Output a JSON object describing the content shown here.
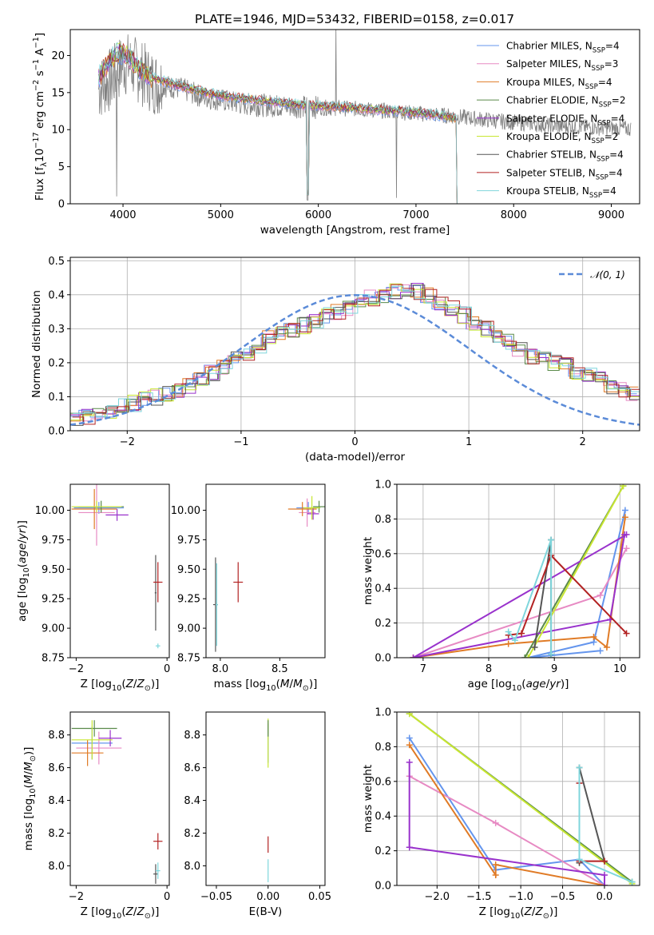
{
  "title": "PLATE=1946, MJD=53432, FIBERID=0158, z=0.017",
  "series_styles": [
    {
      "key": "CM",
      "name": "Chabrier MILES, N<sub>SSP</sub>=4",
      "color": "#6495ed"
    },
    {
      "key": "SM",
      "name": "Salpeter MILES, N<sub>SSP</sub>=3",
      "color": "#e78ac3"
    },
    {
      "key": "KM",
      "name": "Kroupa MILES, N<sub>SSP</sub>=4",
      "color": "#e07b26"
    },
    {
      "key": "CE",
      "name": "Chabrier ELODIE, N<sub>SSP</sub>=2",
      "color": "#5a8a4a"
    },
    {
      "key": "SE",
      "name": "Salpeter ELODIE, N<sub>SSP</sub>=4",
      "color": "#9932cc"
    },
    {
      "key": "KE",
      "name": "Kroupa ELODIE, N<sub>SSP</sub>=2",
      "color": "#c8e632"
    },
    {
      "key": "CS",
      "name": "Chabrier STELIB, N<sub>SSP</sub>=4",
      "color": "#555555"
    },
    {
      "key": "SS",
      "name": "Salpeter STELIB, N<sub>SSP</sub>=4",
      "color": "#b22222"
    },
    {
      "key": "KS",
      "name": "Kroupa STELIB, N<sub>SSP</sub>=4",
      "color": "#7fd6dc"
    }
  ],
  "chart_data": [
    {
      "id": "spectrum",
      "type": "line",
      "xlabel": "wavelength [Angstrom, rest frame]",
      "ylabel": "Flux [f<sub>λ</sub>10<sup>−17</sup> erg cm<sup>−2</sup> s<sup>−1</sup> A<sup>−1</sup>]",
      "xlim": [
        3460,
        9290
      ],
      "ylim": [
        0,
        23.5
      ],
      "xticks": [
        4000,
        5000,
        6000,
        7000,
        8000,
        9000
      ],
      "yticks": [
        0,
        5,
        10,
        15,
        20
      ],
      "grid": false,
      "legend": "upper right",
      "data_color": "#808080",
      "data_envelope": {
        "x": [
          3750,
          3900,
          4000,
          4100,
          4200,
          4300,
          4400,
          4600,
          4800,
          5000,
          5200,
          5400,
          5600,
          5800,
          6000,
          6200,
          6400,
          6600,
          6800,
          7000,
          7200,
          7400,
          7600,
          7800,
          8000,
          8200,
          8400,
          8600,
          8800,
          9000,
          9200
        ],
        "y": [
          15.5,
          17,
          19,
          18.5,
          17.5,
          16.5,
          16,
          15.5,
          14.5,
          14,
          13.5,
          13.3,
          13.2,
          13.1,
          13,
          12.9,
          12.8,
          12.6,
          12.4,
          12.2,
          12,
          11.8,
          11.5,
          11.2,
          11,
          10.8,
          10.5,
          10.4,
          10.3,
          10.2,
          10.1
        ]
      },
      "model_envelope": {
        "x": [
          3750,
          3850,
          3950,
          4050,
          4150,
          4300,
          4500,
          4700,
          5000,
          5300,
          5600,
          6000,
          6300,
          6600,
          7000,
          7300,
          7420
        ],
        "y": [
          17,
          19,
          20.5,
          20,
          18.5,
          17,
          16.2,
          15.5,
          14.6,
          14.1,
          13.6,
          13.2,
          13,
          12.7,
          12.3,
          11.8,
          11.5
        ]
      }
    },
    {
      "id": "residuals",
      "type": "histogram",
      "xlabel": "(data-model)/error",
      "ylabel": "Normed distribution",
      "xlim": [
        -2.5,
        2.5
      ],
      "ylim": [
        0,
        0.51
      ],
      "xticks": [
        -2,
        -1,
        0,
        1,
        2
      ],
      "yticks": [
        0.0,
        0.1,
        0.2,
        0.3,
        0.4,
        0.5
      ],
      "grid": true,
      "legend": "upper right",
      "reference_label": "𝒩(0, 1)",
      "reference_color": "#5b8bd8",
      "bin_edges_start": -2.5,
      "bin_width": 0.1,
      "hist": [
        0.035,
        0.04,
        0.05,
        0.06,
        0.07,
        0.08,
        0.09,
        0.1,
        0.11,
        0.12,
        0.13,
        0.15,
        0.17,
        0.19,
        0.21,
        0.23,
        0.25,
        0.27,
        0.29,
        0.3,
        0.31,
        0.32,
        0.34,
        0.35,
        0.36,
        0.38,
        0.39,
        0.4,
        0.41,
        0.42,
        0.41,
        0.4,
        0.38,
        0.36,
        0.34,
        0.32,
        0.3,
        0.28,
        0.26,
        0.24,
        0.22,
        0.21,
        0.2,
        0.19,
        0.17,
        0.16,
        0.15,
        0.13,
        0.12,
        0.11
      ]
    },
    {
      "id": "age_vs_Z",
      "type": "errorbar",
      "xlabel": "Z [log<sub>10</sub>(<i>Z</i>/<i>Z</i><sub>⊙</sub>)]",
      "ylabel": "age  [log<sub>10</sub>(<i>age</i>/<i>yr</i>)]",
      "xlim": [
        -2.13,
        0.05
      ],
      "ylim": [
        8.75,
        10.22
      ],
      "xticks": [
        -2,
        0
      ],
      "yticks": [
        8.75,
        9.0,
        9.25,
        9.5,
        9.75,
        10.0
      ],
      "points": [
        {
          "s": "CM",
          "x": -1.5,
          "y": 10.02,
          "xe": 0.55,
          "ye": 0.05
        },
        {
          "s": "SM",
          "x": -1.55,
          "y": 9.98,
          "xe": 0.4,
          "ye": 0.28
        },
        {
          "s": "KM",
          "x": -1.6,
          "y": 10.01,
          "xe": 0.5,
          "ye": 0.17
        },
        {
          "s": "CE",
          "x": -1.45,
          "y": 10.03,
          "xe": 0.5,
          "ye": 0.05
        },
        {
          "s": "SE",
          "x": -1.1,
          "y": 9.96,
          "xe": 0.25,
          "ye": 0.05
        },
        {
          "s": "KE",
          "x": -1.55,
          "y": 10.03,
          "xe": 0.55,
          "ye": 0.05
        },
        {
          "s": "CS",
          "x": -0.25,
          "y": 9.3,
          "xe": 0.02,
          "ye": 0.32
        },
        {
          "s": "SS",
          "x": -0.2,
          "y": 9.39,
          "xe": 0.1,
          "ye": 0.17
        },
        {
          "s": "KS",
          "x": -0.2,
          "y": 8.85,
          "xe": 0.05,
          "ye": 0.02
        }
      ]
    },
    {
      "id": "age_vs_mass",
      "type": "errorbar",
      "xlabel": "mass [log<sub>10</sub>(<i>M</i>/<i>M</i><sub>⊙</sub>)]",
      "ylabel": "",
      "xlim": [
        7.88,
        8.88
      ],
      "ylim": [
        8.75,
        10.22
      ],
      "xticks": [
        8.0,
        8.5
      ],
      "yticks": [
        8.75,
        9.0,
        9.25,
        9.5,
        9.75,
        10.0
      ],
      "points": [
        {
          "s": "CM",
          "x": 8.74,
          "y": 10.02,
          "xe": 0.1,
          "ye": 0.05
        },
        {
          "s": "SM",
          "x": 8.73,
          "y": 9.98,
          "xe": 0.07,
          "ye": 0.12
        },
        {
          "s": "KM",
          "x": 8.69,
          "y": 10.01,
          "xe": 0.12,
          "ye": 0.06
        },
        {
          "s": "CE",
          "x": 8.83,
          "y": 10.03,
          "xe": 0.05,
          "ye": 0.05
        },
        {
          "s": "SE",
          "x": 8.78,
          "y": 9.97,
          "xe": 0.05,
          "ye": 0.05
        },
        {
          "s": "KE",
          "x": 8.77,
          "y": 10.02,
          "xe": 0.07,
          "ye": 0.1
        },
        {
          "s": "CS",
          "x": 7.96,
          "y": 9.2,
          "xe": 0.02,
          "ye": 0.4
        },
        {
          "s": "SS",
          "x": 8.15,
          "y": 9.39,
          "xe": 0.04,
          "ye": 0.17
        },
        {
          "s": "KS",
          "x": 7.97,
          "y": 9.2,
          "xe": 0.01,
          "ye": 0.35
        }
      ]
    },
    {
      "id": "weight_vs_age",
      "type": "line",
      "xlabel": "age  [log<sub>10</sub>(<i>age</i>/<i>yr</i>)]",
      "ylabel": "mass weight",
      "xlim": [
        6.6,
        10.3
      ],
      "ylim": [
        0,
        1
      ],
      "xticks": [
        7,
        8,
        9,
        10
      ],
      "yticks": [
        0.0,
        0.2,
        0.4,
        0.6,
        0.8,
        1.0
      ],
      "grid": true,
      "series": [
        {
          "s": "CM",
          "x": [
            10.08,
            9.6,
            8.6,
            9.7
          ],
          "y": [
            0.85,
            0.09,
            0.0,
            0.04
          ]
        },
        {
          "s": "SM",
          "x": [
            6.85,
            9.7,
            10.1
          ],
          "y": [
            0.0,
            0.36,
            0.63
          ]
        },
        {
          "s": "KM",
          "x": [
            10.08,
            9.8,
            9.6,
            8.3,
            6.85
          ],
          "y": [
            0.81,
            0.06,
            0.12,
            0.08,
            0.0
          ]
        },
        {
          "s": "CE",
          "x": [
            8.55,
            10.05
          ],
          "y": [
            0.0,
            0.99
          ]
        },
        {
          "s": "SE",
          "x": [
            10.07,
            9.85,
            6.85,
            10.1
          ],
          "y": [
            0.71,
            0.22,
            0.0,
            0.71
          ]
        },
        {
          "s": "KE",
          "x": [
            8.6,
            10.05
          ],
          "y": [
            0.0,
            0.99
          ]
        },
        {
          "s": "CS",
          "x": [
            8.95,
            8.95,
            8.7
          ],
          "y": [
            0.0,
            0.68,
            0.06
          ]
        },
        {
          "s": "SS",
          "x": [
            10.1,
            8.95,
            8.5,
            8.3
          ],
          "y": [
            0.14,
            0.59,
            0.14,
            0.13
          ]
        },
        {
          "s": "KS",
          "x": [
            8.95,
            8.95,
            8.4,
            8.3
          ],
          "y": [
            0.02,
            0.68,
            0.1,
            0.15
          ]
        }
      ]
    },
    {
      "id": "mass_vs_Z",
      "type": "errorbar",
      "xlabel": "Z [log<sub>10</sub>(<i>Z</i>/<i>Z</i><sub>⊙</sub>)]",
      "ylabel": "mass [log<sub>10</sub>(<i>M</i>/<i>M</i><sub>⊙</sub>)]",
      "xlim": [
        -2.13,
        0.05
      ],
      "ylim": [
        7.88,
        8.94
      ],
      "xticks": [
        -2,
        0
      ],
      "yticks": [
        8.0,
        8.2,
        8.4,
        8.6,
        8.8
      ],
      "points": [
        {
          "s": "CM",
          "x": -1.65,
          "y": 8.75,
          "xe": 0.45,
          "ye": 0.1
        },
        {
          "s": "SM",
          "x": -1.5,
          "y": 8.72,
          "xe": 0.5,
          "ye": 0.1
        },
        {
          "s": "KM",
          "x": -1.75,
          "y": 8.69,
          "xe": 0.35,
          "ye": 0.08
        },
        {
          "s": "CE",
          "x": -1.6,
          "y": 8.84,
          "xe": 0.5,
          "ye": 0.05
        },
        {
          "s": "SE",
          "x": -1.25,
          "y": 8.78,
          "xe": 0.25,
          "ye": 0.05
        },
        {
          "s": "KE",
          "x": -1.65,
          "y": 8.77,
          "xe": 0.45,
          "ye": 0.12
        },
        {
          "s": "CS",
          "x": -0.25,
          "y": 7.95,
          "xe": 0.05,
          "ye": 0.06
        },
        {
          "s": "SS",
          "x": -0.2,
          "y": 8.15,
          "xe": 0.1,
          "ye": 0.05
        },
        {
          "s": "KS",
          "x": -0.2,
          "y": 7.97,
          "xe": 0.05,
          "ye": 0.05
        }
      ]
    },
    {
      "id": "mass_vs_ebv",
      "type": "errorbar",
      "xlabel": "E(B-V)",
      "ylabel": "",
      "xlim": [
        -0.06,
        0.055
      ],
      "ylim": [
        7.88,
        8.94
      ],
      "xticks": [
        -0.05,
        0.0,
        0.05
      ],
      "yticks": [
        8.0,
        8.2,
        8.4,
        8.6,
        8.8
      ],
      "points": [
        {
          "s": "CM",
          "x": 0,
          "y": 8.75,
          "xe": 0,
          "ye": 0.12
        },
        {
          "s": "KE",
          "x": 0,
          "y": 8.75,
          "xe": 0,
          "ye": 0.15
        },
        {
          "s": "CE",
          "x": 0,
          "y": 8.84,
          "xe": 0,
          "ye": 0.05
        },
        {
          "s": "SS",
          "x": 0,
          "y": 8.13,
          "xe": 0,
          "ye": 0.05
        },
        {
          "s": "KS",
          "x": 0,
          "y": 7.97,
          "xe": 0,
          "ye": 0.07
        }
      ]
    },
    {
      "id": "weight_vs_Z",
      "type": "line",
      "xlabel": "Z [log<sub>10</sub>(<i>Z</i>/<i>Z</i><sub>⊙</sub>)]",
      "ylabel": "mass weight",
      "xlim": [
        -2.48,
        0.42
      ],
      "ylim": [
        0,
        1
      ],
      "xticks": [
        -2.0,
        -1.5,
        -1.0,
        -0.5,
        0.0
      ],
      "yticks": [
        0.0,
        0.2,
        0.4,
        0.6,
        0.8,
        1.0
      ],
      "grid": true,
      "series": [
        {
          "s": "CM",
          "x": [
            -2.33,
            -1.3,
            -0.3,
            0.0
          ],
          "y": [
            0.85,
            0.09,
            0.15,
            0.0
          ]
        },
        {
          "s": "SM",
          "x": [
            -2.33,
            -1.3,
            0.0
          ],
          "y": [
            0.63,
            0.36,
            0.0
          ]
        },
        {
          "s": "KM",
          "x": [
            -2.33,
            -1.3,
            -1.3,
            0.0
          ],
          "y": [
            0.81,
            0.06,
            0.12,
            0.0
          ]
        },
        {
          "s": "CE",
          "x": [
            -2.33,
            0.33
          ],
          "y": [
            0.99,
            0.02
          ]
        },
        {
          "s": "SE",
          "x": [
            -2.33,
            -2.33,
            0.0,
            0.0
          ],
          "y": [
            0.71,
            0.22,
            0.06,
            0.0
          ]
        },
        {
          "s": "KE",
          "x": [
            -2.33,
            0.33
          ],
          "y": [
            0.99,
            0.01
          ]
        },
        {
          "s": "CS",
          "x": [
            -0.3,
            -0.3,
            0.0
          ],
          "y": [
            0.13,
            0.68,
            0.14
          ]
        },
        {
          "s": "SS",
          "x": [
            -0.3,
            -0.3,
            0.0
          ],
          "y": [
            0.59,
            0.14,
            0.14
          ]
        },
        {
          "s": "KS",
          "x": [
            -0.3,
            -0.3,
            0.33
          ],
          "y": [
            0.68,
            0.15,
            0.02
          ]
        }
      ]
    }
  ]
}
